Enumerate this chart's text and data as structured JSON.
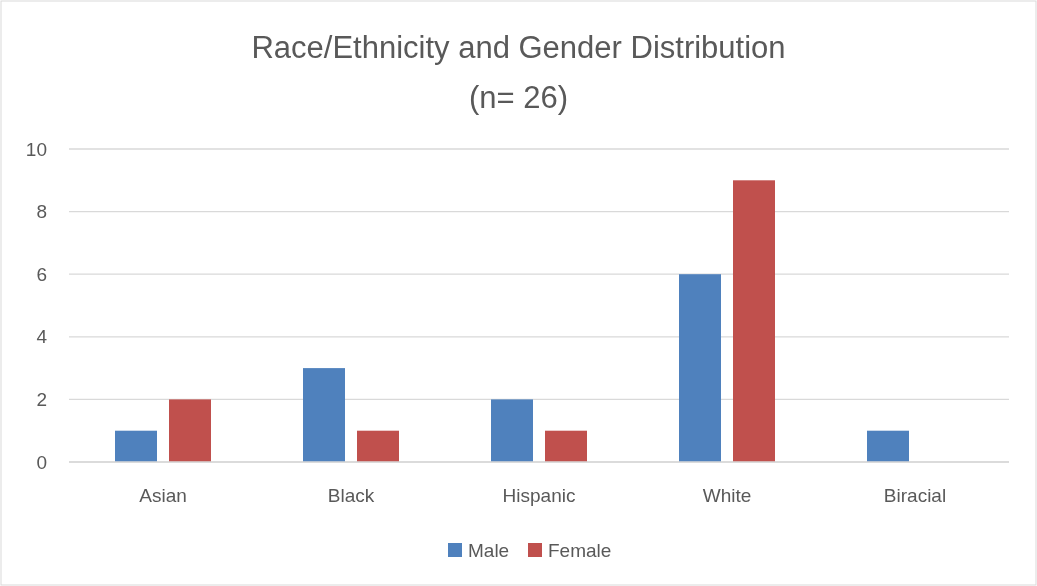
{
  "chart_data": {
    "type": "bar",
    "title": "Race/Ethnicity and Gender Distribution",
    "subtitle": "(n= 26)",
    "categories": [
      "Asian",
      "Black",
      "Hispanic",
      "White",
      "Biracial"
    ],
    "series": [
      {
        "name": "Male",
        "color": "#4f81bd",
        "values": [
          1,
          3,
          2,
          6,
          1
        ]
      },
      {
        "name": "Female",
        "color": "#c0504d",
        "values": [
          2,
          1,
          1,
          9,
          0
        ]
      }
    ],
    "ylim": [
      0,
      10
    ],
    "yticks": [
      0,
      2,
      4,
      6,
      8,
      10
    ],
    "grid": "y",
    "legend": "bottom"
  }
}
